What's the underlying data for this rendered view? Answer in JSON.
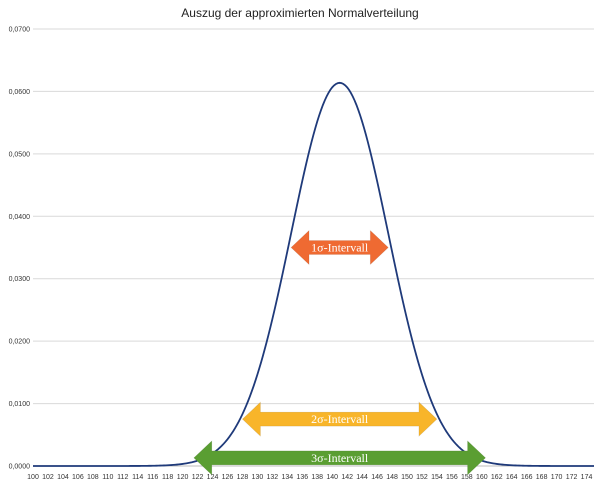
{
  "chart_data": {
    "type": "line",
    "title": "Auszug der approximierten Normalverteilung",
    "xlabel": "",
    "ylabel": "",
    "xlim": [
      100,
      175
    ],
    "ylim": [
      0,
      0.07
    ],
    "x_ticks": [
      100,
      102,
      104,
      106,
      108,
      110,
      112,
      114,
      116,
      118,
      120,
      122,
      124,
      126,
      128,
      130,
      132,
      134,
      136,
      138,
      140,
      142,
      144,
      146,
      148,
      150,
      152,
      154,
      156,
      158,
      160,
      162,
      164,
      166,
      168,
      170,
      172,
      174
    ],
    "y_ticks": [
      0,
      0.01,
      0.02,
      0.03,
      0.04,
      0.05,
      0.06,
      0.07
    ],
    "y_tick_labels": [
      "0,0000",
      "0,0100",
      "0,0200",
      "0,0300",
      "0,0400",
      "0,0500",
      "0,0600",
      "0,0700"
    ],
    "grid": true,
    "series": [
      {
        "mean": 141,
        "sd": 6.5,
        "color": "#1f3a7a"
      }
    ],
    "annotations": [
      {
        "label": "1σ-Intervall",
        "x_start": 134.5,
        "x_end": 147.5,
        "y": 0.035,
        "color": "#ef6a32"
      },
      {
        "label": "2σ-Intervall",
        "x_start": 128,
        "x_end": 154,
        "y": 0.0075,
        "color": "#f8b52a"
      },
      {
        "label": "3σ-Intervall",
        "x_start": 121.5,
        "x_end": 160.5,
        "y": 0.0013,
        "color": "#5a9e32"
      }
    ]
  }
}
